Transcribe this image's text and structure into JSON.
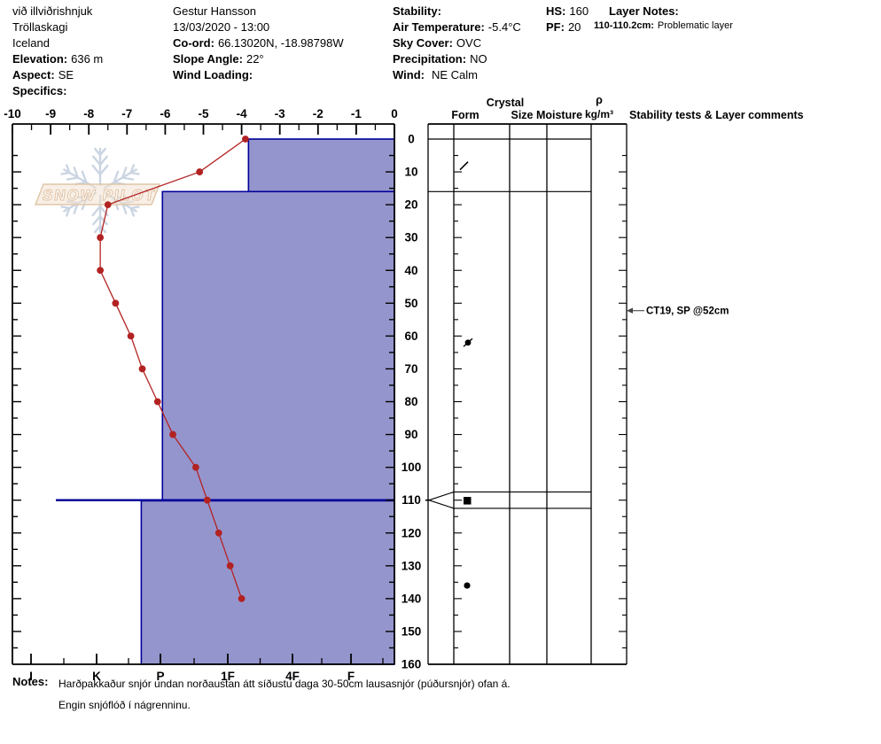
{
  "header": {
    "location": {
      "site": "við illviðrishnjuk",
      "region": "Tröllaskagi",
      "country": "Iceland",
      "elevation_label": "Elevation:",
      "elevation_value": "636 m",
      "aspect_label": "Aspect:",
      "aspect_value": "SE",
      "specifics_label": "Specifics:"
    },
    "observer": {
      "name": "Gestur Hansson",
      "datetime": "13/03/2020 - 13:00",
      "coord_label": "Co-ord:",
      "coord_value": "66.13020N, -18.98798W",
      "slope_label": "Slope Angle:",
      "slope_value": "22°",
      "wind_loading_label": "Wind Loading:"
    },
    "conditions": {
      "stability_label": "Stability:",
      "air_temp_label": "Air Temperature:",
      "air_temp_value": "-5.4°C",
      "sky_label": "Sky Cover:",
      "sky_value": "OVC",
      "precip_label": "Precipitation:",
      "precip_value": "NO",
      "wind_label": "Wind:",
      "wind_value": "NE Calm"
    },
    "totals": {
      "hs_label": "HS:",
      "hs_value": "160",
      "pf_label": "PF:",
      "pf_value": "20"
    },
    "layer_notes": {
      "title": "Layer Notes:",
      "entry_range": "110-110.2cm:",
      "entry_text": "Problematic layer"
    }
  },
  "watermark": {
    "text": "SNOW PILOT"
  },
  "table": {
    "crystal": "Crystal",
    "form": "Form",
    "size": "Size",
    "moisture": "Moisture",
    "density_rho": "ρ",
    "density_unit": "kg/m³",
    "stability": "Stability tests & Layer comments"
  },
  "notes": {
    "label": "Notes:",
    "line1": "Harðpakkaður snjór undan norðaustan átt síðustu daga 30-50cm lausasnjór (púðursnjór) ofan á.",
    "line2": "Engin snjóflóð í nágrenninu."
  },
  "chart_data": {
    "type": "area",
    "subtype": "snow-pit-profile",
    "temp_axis": {
      "position": "top",
      "ticks": [
        -10,
        -9,
        -8,
        -7,
        -6,
        -5,
        -4,
        -3,
        -2,
        -1,
        0
      ],
      "range": [
        -10,
        0
      ]
    },
    "depth_axis": {
      "position": "right-of-plot",
      "unit": "cm",
      "ticks": [
        0,
        10,
        20,
        30,
        40,
        50,
        60,
        70,
        80,
        90,
        100,
        110,
        120,
        130,
        140,
        150,
        160
      ],
      "range": [
        0,
        160
      ]
    },
    "hardness_axis": {
      "position": "bottom",
      "ticks": [
        "I",
        "K",
        "P",
        "1F",
        "4F",
        "F"
      ]
    },
    "temperature_profile": {
      "depth_cm": [
        0,
        10,
        20,
        30,
        40,
        50,
        60,
        70,
        80,
        90,
        100,
        110,
        120,
        130,
        140
      ],
      "temp_c": [
        -3.9,
        -5.1,
        -7.5,
        -7.7,
        -7.7,
        -7.3,
        -6.9,
        -6.6,
        -6.2,
        -5.8,
        -5.2,
        -4.9,
        -4.6,
        -4.3,
        -4.0
      ]
    },
    "layers": [
      {
        "top_cm": 0,
        "bottom_cm": 16,
        "hardness": "1F-",
        "hardness_ordinal": 3.32
      },
      {
        "top_cm": 16,
        "bottom_cm": 110,
        "hardness": "P",
        "hardness_ordinal": 2.03
      },
      {
        "top_cm": 110.2,
        "bottom_cm": 160,
        "hardness": "P+",
        "hardness_ordinal": 1.7
      }
    ],
    "flagged_layer": {
      "depth_cm": 110,
      "band_top_cm": 107.5,
      "band_bottom_cm": 112.5
    },
    "grain_symbols": [
      {
        "depth_cm": 8,
        "glyph": "slash"
      },
      {
        "depth_cm": 62,
        "glyph": "dot-slash"
      },
      {
        "depth_cm": 110.1,
        "glyph": "filled-square"
      },
      {
        "depth_cm": 136,
        "glyph": "filled-circle"
      }
    ],
    "stability_tests": [
      {
        "depth_cm": 52,
        "label": "CT19, SP @52cm"
      }
    ],
    "colors": {
      "layer_fill": "#9595cd",
      "layer_border": "#000099",
      "temp_line": "#b22222"
    }
  }
}
